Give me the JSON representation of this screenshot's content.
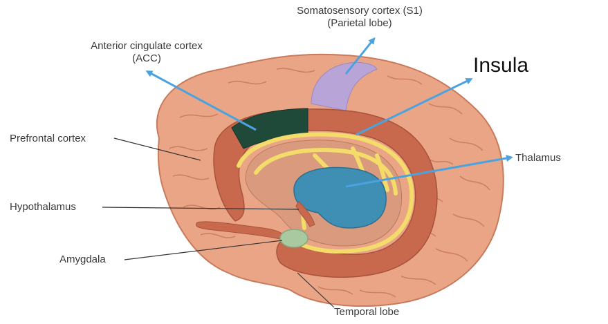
{
  "labels": {
    "somatosensory_line1": "Somatosensory cortex (S1)",
    "somatosensory_line2": "(Parietal lobe)",
    "acc_line1": "Anterior cingulate cortex",
    "acc_line2": "(ACC)",
    "insula": "Insula",
    "prefrontal": "Prefrontal cortex",
    "thalamus": "Thalamus",
    "hypothalamus": "Hypothalamus",
    "amygdala": "Amygdala",
    "temporal": "Temporal lobe"
  },
  "colors": {
    "brain": "#e9a586",
    "gyri_line": "#c97a5c",
    "limbic": "#c8694e",
    "acc": "#1f4a3a",
    "s1": "#b8a4d6",
    "fornix": "#f3dc6a",
    "thalamus": "#3f8fb4",
    "amygdala": "#a9c9a0",
    "arrow": "#4aa3e0",
    "leader": "#333333"
  }
}
